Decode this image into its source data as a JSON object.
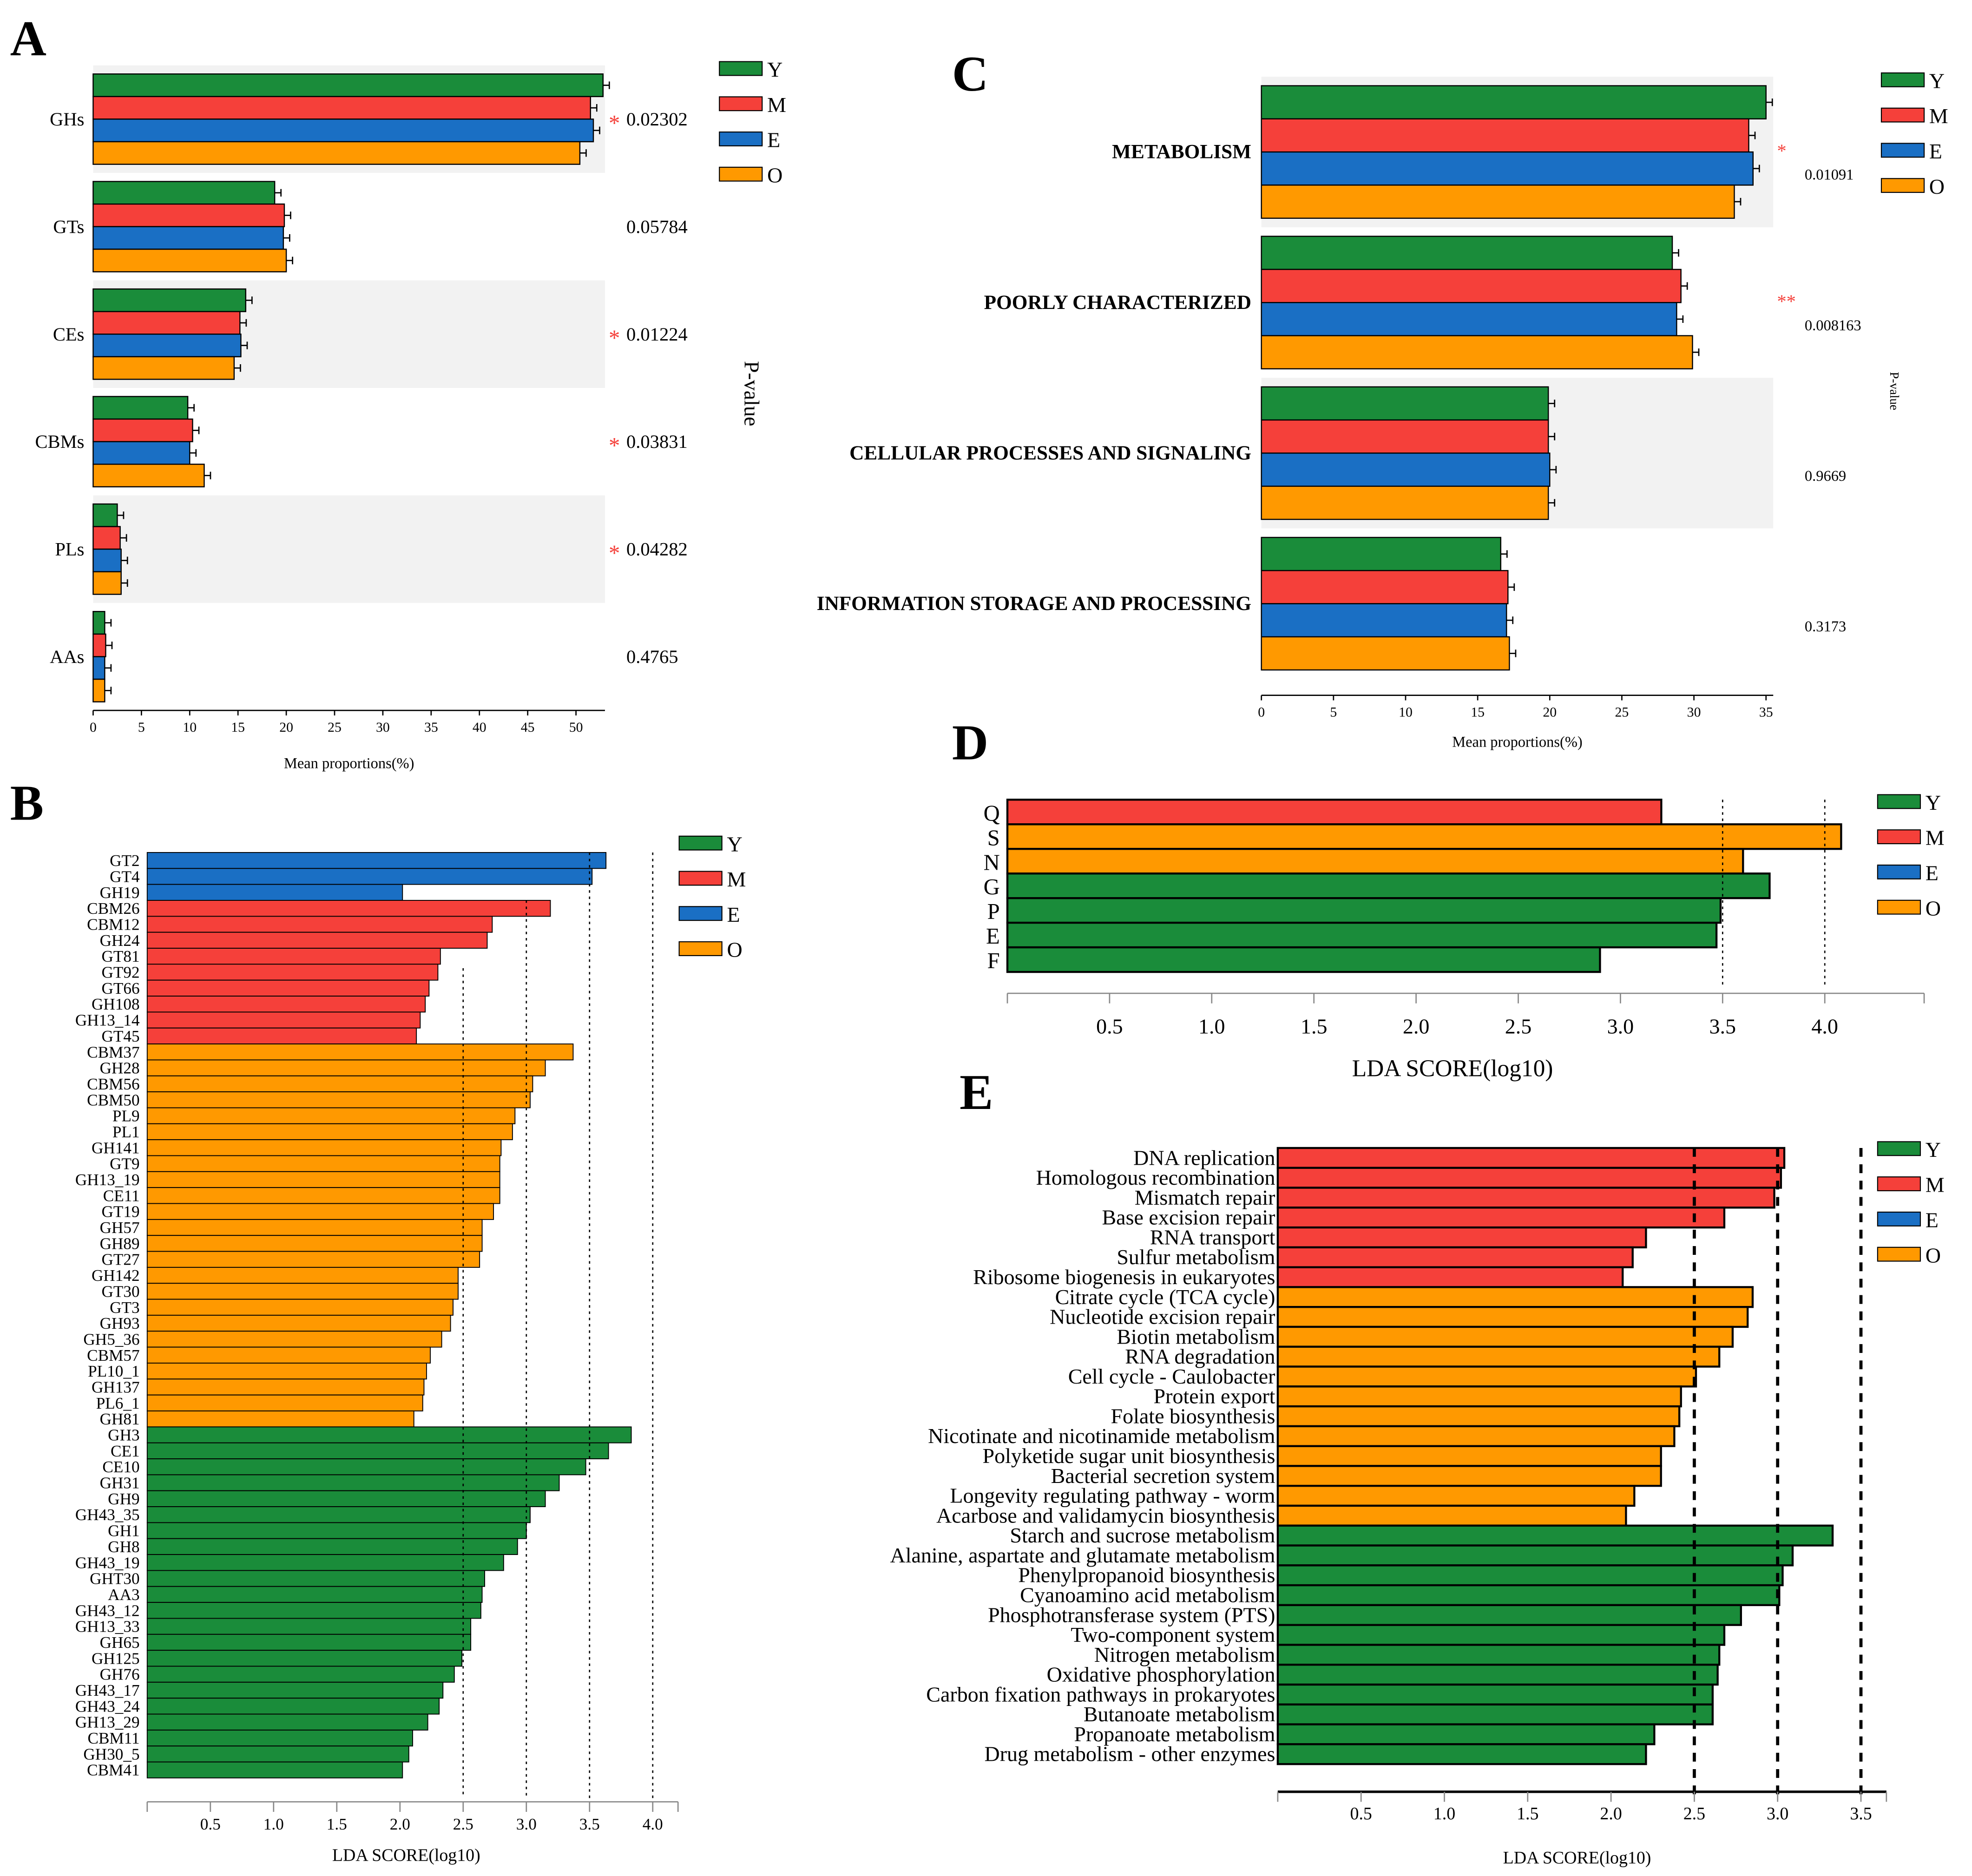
{
  "colors": {
    "Y": "#1a8c3a",
    "M": "#f5403a",
    "E": "#1a6fc4",
    "O": "#ff9900",
    "shade": "#f2f2f2",
    "axis": "#000000"
  },
  "chart_data": [
    {
      "panel": "A",
      "type": "bar",
      "orientation": "horizontal",
      "legend": [
        "Y",
        "M",
        "E",
        "O"
      ],
      "categories": [
        "GHs",
        "GTs",
        "CEs",
        "CBMs",
        "PLs",
        "AAs"
      ],
      "series": [
        {
          "name": "Y",
          "values": [
            52.8,
            18.8,
            15.8,
            9.8,
            2.5,
            1.2
          ]
        },
        {
          "name": "M",
          "values": [
            51.5,
            19.8,
            15.2,
            10.3,
            2.8,
            1.3
          ]
        },
        {
          "name": "E",
          "values": [
            51.8,
            19.7,
            15.3,
            10.0,
            2.9,
            1.2
          ]
        },
        {
          "name": "O",
          "values": [
            50.4,
            20.0,
            14.6,
            11.5,
            2.9,
            1.2
          ]
        }
      ],
      "pvalues": [
        "0.02302",
        "0.05784",
        "0.01224",
        "0.03831",
        "0.04282",
        "0.4765"
      ],
      "stars": [
        "*",
        "",
        "*",
        "*",
        "*",
        ""
      ],
      "shaded": [
        true,
        false,
        true,
        false,
        true,
        false
      ],
      "xticks": [
        "0",
        "5",
        "10",
        "15",
        "20",
        "25",
        "30",
        "35",
        "40",
        "45",
        "50"
      ],
      "xlim": [
        0,
        53
      ],
      "xlabel": "Mean proportions(%)",
      "ylabel": "P-value"
    },
    {
      "panel": "B",
      "type": "bar",
      "orientation": "horizontal",
      "legend": [
        "Y",
        "M",
        "E",
        "O"
      ],
      "categories": [
        "GT2",
        "GT4",
        "GH19",
        "CBM26",
        "CBM12",
        "GH24",
        "GT81",
        "GT92",
        "GT66",
        "GH108",
        "GH13_14",
        "GT45",
        "CBM37",
        "GH28",
        "CBM56",
        "CBM50",
        "PL9",
        "PL1",
        "GH141",
        "GT9",
        "GH13_19",
        "CE11",
        "GT19",
        "GH57",
        "GH89",
        "GT27",
        "GH142",
        "GT30",
        "GT3",
        "GH93",
        "GH5_36",
        "CBM57",
        "PL10_1",
        "GH137",
        "PL6_1",
        "GH81",
        "GH3",
        "CE1",
        "CE10",
        "GH31",
        "GH9",
        "GH43_35",
        "GH1",
        "GH8",
        "GH43_19",
        "GHT30",
        "AA3",
        "GH43_12",
        "GH13_33",
        "GH65",
        "GH125",
        "GH76",
        "GH43_17",
        "GH43_24",
        "GH13_29",
        "CBM11",
        "GH30_5",
        "CBM41"
      ],
      "values": [
        3.63,
        3.52,
        2.02,
        3.19,
        2.73,
        2.69,
        2.32,
        2.3,
        2.23,
        2.2,
        2.16,
        2.13,
        3.37,
        3.15,
        3.05,
        3.03,
        2.91,
        2.89,
        2.8,
        2.79,
        2.79,
        2.79,
        2.74,
        2.65,
        2.65,
        2.63,
        2.46,
        2.46,
        2.42,
        2.4,
        2.33,
        2.24,
        2.21,
        2.19,
        2.18,
        2.11,
        3.83,
        3.65,
        3.47,
        3.26,
        3.15,
        3.03,
        3.0,
        2.93,
        2.82,
        2.67,
        2.65,
        2.64,
        2.56,
        2.56,
        2.49,
        2.43,
        2.34,
        2.31,
        2.22,
        2.1,
        2.07,
        2.02
      ],
      "groups": [
        "E",
        "E",
        "E",
        "M",
        "M",
        "M",
        "M",
        "M",
        "M",
        "M",
        "M",
        "M",
        "O",
        "O",
        "O",
        "O",
        "O",
        "O",
        "O",
        "O",
        "O",
        "O",
        "O",
        "O",
        "O",
        "O",
        "O",
        "O",
        "O",
        "O",
        "O",
        "O",
        "O",
        "O",
        "O",
        "O",
        "Y",
        "Y",
        "Y",
        "Y",
        "Y",
        "Y",
        "Y",
        "Y",
        "Y",
        "Y",
        "Y",
        "Y",
        "Y",
        "Y",
        "Y",
        "Y",
        "Y",
        "Y",
        "Y",
        "Y",
        "Y",
        "Y"
      ],
      "xticks": [
        "0.5",
        "1.0",
        "1.5",
        "2.0",
        "2.5",
        "3.0",
        "3.5",
        "4.0"
      ],
      "xlim": [
        0,
        4.2
      ],
      "xlabel": "LDA SCORE(log10)"
    },
    {
      "panel": "C",
      "type": "bar",
      "orientation": "horizontal",
      "legend": [
        "Y",
        "M",
        "E",
        "O"
      ],
      "categories": [
        "METABOLISM",
        "POORLY CHARACTERIZED",
        "CELLULAR PROCESSES AND SIGNALING",
        "INFORMATION STORAGE AND PROCESSING"
      ],
      "series": [
        {
          "name": "Y",
          "values": [
            35.0,
            28.5,
            19.9,
            16.6
          ]
        },
        {
          "name": "M",
          "values": [
            33.8,
            29.1,
            19.9,
            17.1
          ]
        },
        {
          "name": "E",
          "values": [
            34.1,
            28.8,
            20.0,
            17.0
          ]
        },
        {
          "name": "O",
          "values": [
            32.8,
            29.9,
            19.9,
            17.2
          ]
        }
      ],
      "pvalues": [
        "0.01091",
        "0.008163",
        "0.9669",
        "0.3173"
      ],
      "stars": [
        "*",
        "**",
        "",
        ""
      ],
      "shaded": [
        true,
        false,
        true,
        false
      ],
      "xticks": [
        "0",
        "5",
        "10",
        "15",
        "20",
        "25",
        "30",
        "35"
      ],
      "xlim": [
        0,
        35.5
      ],
      "xlabel": "Mean proportions(%)",
      "ylabel": "P-value"
    },
    {
      "panel": "D",
      "type": "bar",
      "orientation": "horizontal",
      "legend": [
        "Y",
        "M",
        "E",
        "O"
      ],
      "categories": [
        "Q",
        "S",
        "N",
        "G",
        "P",
        "E",
        "F"
      ],
      "values": [
        3.2,
        4.08,
        3.6,
        3.73,
        3.49,
        3.47,
        2.9
      ],
      "groups": [
        "M",
        "O",
        "O",
        "Y",
        "Y",
        "Y",
        "Y"
      ],
      "xticks": [
        "0.5",
        "1.0",
        "1.5",
        "2.0",
        "2.5",
        "3.0",
        "3.5",
        "4.0"
      ],
      "xlim": [
        0,
        4.5
      ],
      "xlabel": "LDA SCORE(log10)"
    },
    {
      "panel": "E",
      "type": "bar",
      "orientation": "horizontal",
      "legend": [
        "Y",
        "M",
        "E",
        "O"
      ],
      "categories": [
        "DNA replication",
        "Homologous recombination",
        "Mismatch repair",
        "Base excision repair",
        "RNA transport",
        "Sulfur metabolism",
        "Ribosome biogenesis in eukaryotes",
        "Citrate cycle (TCA cycle)",
        "Nucleotide excision repair",
        "Biotin metabolism",
        "RNA degradation",
        "Cell cycle - Caulobacter",
        "Protein export",
        "Folate biosynthesis",
        "Nicotinate and nicotinamide metabolism",
        "Polyketide sugar unit biosynthesis",
        "Bacterial secretion system",
        "Longevity regulating pathway - worm",
        "Acarbose and validamycin biosynthesis",
        "Starch and sucrose metabolism",
        "Alanine, aspartate and glutamate metabolism",
        "Phenylpropanoid biosynthesis",
        "Cyanoamino acid metabolism",
        "Phosphotransferase system (PTS)",
        "Two-component system",
        "Nitrogen metabolism",
        "Oxidative phosphorylation",
        "Carbon fixation pathways in prokaryotes",
        "Butanoate metabolism",
        "Propanoate metabolism",
        "Drug metabolism - other enzymes"
      ],
      "values": [
        3.04,
        3.02,
        2.98,
        2.68,
        2.21,
        2.13,
        2.07,
        2.85,
        2.82,
        2.73,
        2.65,
        2.51,
        2.42,
        2.41,
        2.38,
        2.3,
        2.3,
        2.14,
        2.09,
        3.33,
        3.09,
        3.03,
        3.01,
        2.78,
        2.68,
        2.65,
        2.64,
        2.61,
        2.61,
        2.26,
        2.21
      ],
      "groups": [
        "M",
        "M",
        "M",
        "M",
        "M",
        "M",
        "M",
        "O",
        "O",
        "O",
        "O",
        "O",
        "O",
        "O",
        "O",
        "O",
        "O",
        "O",
        "O",
        "Y",
        "Y",
        "Y",
        "Y",
        "Y",
        "Y",
        "Y",
        "Y",
        "Y",
        "Y",
        "Y",
        "Y"
      ],
      "xticks": [
        "0.5",
        "1.0",
        "1.5",
        "2.0",
        "2.5",
        "3.0",
        "3.5"
      ],
      "xlim": [
        0,
        3.65
      ],
      "xlabel": "LDA SCORE(log10)"
    }
  ]
}
